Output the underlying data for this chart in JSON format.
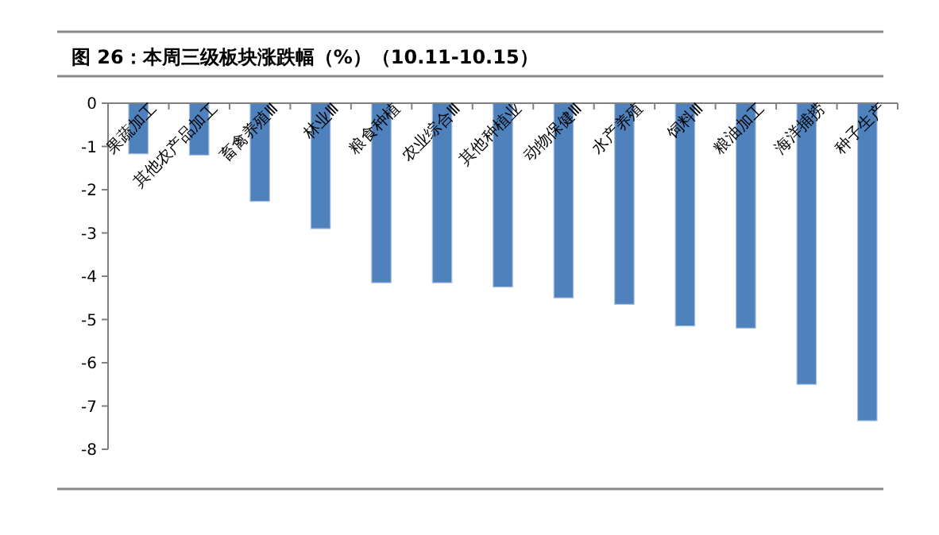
{
  "chart_data": {
    "type": "bar",
    "title": "图 26：本周三级板块涨跌幅（%）（10.11-10.15）",
    "categories": [
      "果蔬加工",
      "其他农产品加工",
      "畜禽养殖Ⅲ",
      "林业Ⅲ",
      "粮食种植",
      "农业综合Ⅲ",
      "其他种植业",
      "动物保健Ⅲ",
      "水产养殖",
      "饲料Ⅲ",
      "粮油加工",
      "海洋捕捞",
      "种子生产"
    ],
    "values": [
      -1.17,
      -1.2,
      -2.27,
      -2.9,
      -4.15,
      -4.15,
      -4.25,
      -4.5,
      -4.65,
      -5.15,
      -5.2,
      -6.5,
      -7.34
    ],
    "color": "#4f81bd",
    "ylim": [
      -8,
      0
    ],
    "yticks": [
      0,
      -1,
      -2,
      -3,
      -4,
      -5,
      -6,
      -7,
      -8
    ],
    "grid": false,
    "legend": false
  }
}
